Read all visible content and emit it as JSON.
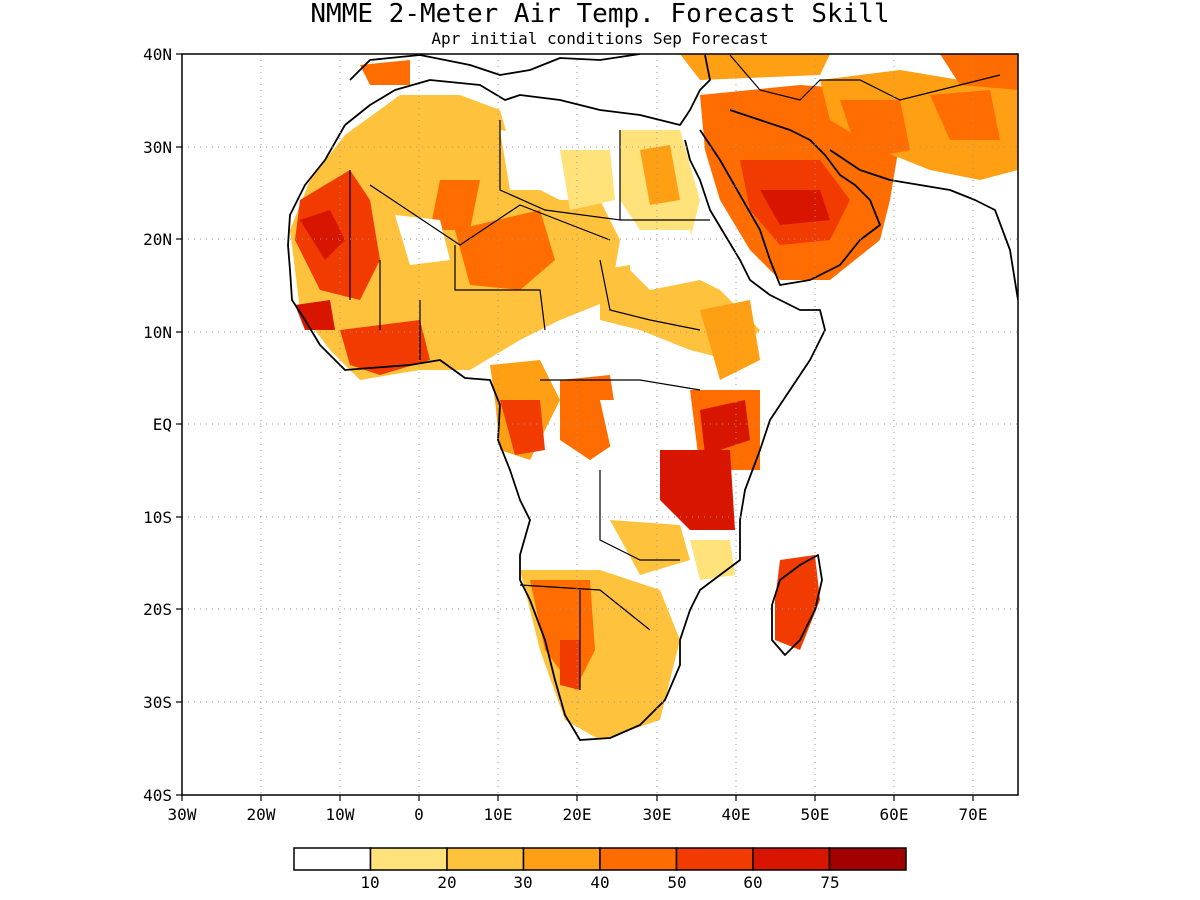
{
  "title": "NMME 2-Meter Air Temp. Forecast Skill",
  "subtitle": "Apr initial conditions  Sep Forecast",
  "axes": {
    "lat_labels": [
      "40N",
      "30N",
      "20N",
      "10N",
      "EQ",
      "10S",
      "20S",
      "30S",
      "40S"
    ],
    "lon_labels": [
      "30W",
      "20W",
      "10W",
      "0",
      "10E",
      "20E",
      "30E",
      "40E",
      "50E",
      "60E",
      "70E"
    ]
  },
  "colorbar": {
    "tick_labels": [
      "10",
      "20",
      "30",
      "40",
      "50",
      "60",
      "75"
    ],
    "colors": [
      "#ffffff",
      "#ffe27a",
      "#ffc23c",
      "#ff9f14",
      "#ff6d00",
      "#f23b00",
      "#d81600",
      "#a30000"
    ]
  },
  "map": {
    "land_color": "#ffffff",
    "coastline_color": "#000000"
  }
}
